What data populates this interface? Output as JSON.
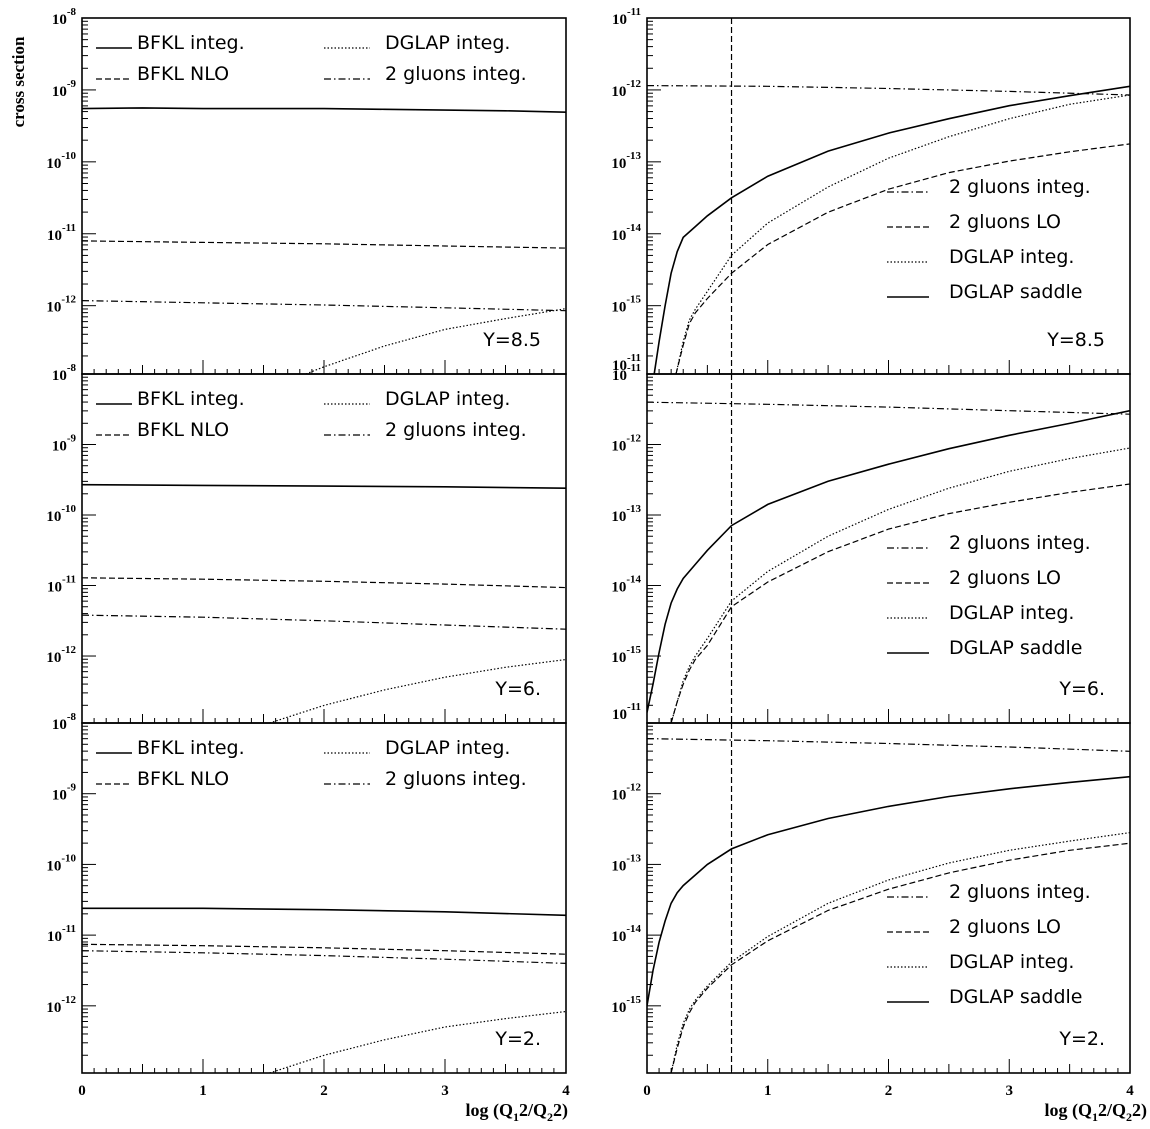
{
  "figure": {
    "ylabel": "cross section",
    "xlabel_left": {
      "base": "log (Q",
      "sub1": "1",
      "mid": "2/Q",
      "sub2": "2",
      "end": "2)"
    },
    "xlabel_right": {
      "base": "log (Q",
      "sub1": "1",
      "mid": "2/Q",
      "sub2": "2",
      "end": "2)"
    }
  },
  "chart_data": [
    {
      "id": "left-top",
      "type": "line",
      "column": "left",
      "row": 0,
      "xlim": [
        0,
        4
      ],
      "ylim_exp": [
        -12.95,
        -8
      ],
      "ytick_exps": [
        -8,
        -9,
        -10,
        -11,
        -12
      ],
      "yscale": "log",
      "annotation": "Y=8.5",
      "show_xticks": false,
      "legend_layout": "two-column",
      "legend": [
        {
          "label": "BFKL integ.",
          "style": "solid"
        },
        {
          "label": "DGLAP integ.",
          "style": "dotted"
        },
        {
          "label": "BFKL NLO",
          "style": "dashed"
        },
        {
          "label": "2 gluons integ.",
          "style": "dashdot"
        }
      ],
      "series": [
        {
          "name": "BFKL integ.",
          "style": "solid",
          "x": [
            0,
            0.5,
            1,
            1.5,
            2,
            2.5,
            3,
            3.5,
            4
          ],
          "log10_y": [
            -9.26,
            -9.25,
            -9.26,
            -9.26,
            -9.26,
            -9.27,
            -9.28,
            -9.29,
            -9.31
          ]
        },
        {
          "name": "BFKL NLO",
          "style": "dashed",
          "x": [
            0,
            1,
            2,
            3,
            4
          ],
          "log10_y": [
            -11.1,
            -11.12,
            -11.14,
            -11.17,
            -11.2
          ]
        },
        {
          "name": "2 gluons integ.",
          "style": "dashdot",
          "x": [
            0,
            1,
            2,
            3,
            4
          ],
          "log10_y": [
            -11.93,
            -11.96,
            -11.99,
            -12.03,
            -12.07
          ]
        },
        {
          "name": "DGLAP integ.",
          "style": "dotted",
          "x": [
            1.85,
            2,
            2.5,
            3,
            3.5,
            4
          ],
          "log10_y": [
            -12.95,
            -12.85,
            -12.56,
            -12.33,
            -12.18,
            -12.04
          ]
        }
      ]
    },
    {
      "id": "right-top",
      "type": "line",
      "column": "right",
      "row": 0,
      "xlim": [
        0,
        4
      ],
      "ylim_exp": [
        -15.95,
        -11
      ],
      "ytick_exps": [
        -11,
        -12,
        -13,
        -14,
        -15
      ],
      "bottom_label_exp": -11,
      "yscale": "log",
      "annotation": "Y=8.5",
      "show_xticks": false,
      "vline_x": 0.7,
      "legend_layout": "one-column",
      "legend": [
        {
          "label": "2 gluons integ.",
          "style": "dashdot"
        },
        {
          "label": "2 gluons LO",
          "style": "dashed"
        },
        {
          "label": "DGLAP integ.",
          "style": "dotted"
        },
        {
          "label": "DGLAP saddle",
          "style": "solid"
        }
      ],
      "series": [
        {
          "name": "2 gluons integ.",
          "style": "dashdot",
          "x": [
            0,
            1,
            2,
            3,
            4
          ],
          "log10_y": [
            -11.94,
            -11.95,
            -11.98,
            -12.02,
            -12.07
          ]
        },
        {
          "name": "DGLAP saddle",
          "style": "solid",
          "x": [
            0.06,
            0.1,
            0.15,
            0.2,
            0.25,
            0.3,
            0.4,
            0.5,
            0.7,
            1,
            1.5,
            2,
            2.5,
            3,
            3.5,
            4
          ],
          "log10_y": [
            -15.95,
            -15.5,
            -15.0,
            -14.55,
            -14.25,
            -14.05,
            -13.9,
            -13.75,
            -13.5,
            -13.2,
            -12.85,
            -12.6,
            -12.4,
            -12.22,
            -12.08,
            -11.95
          ]
        },
        {
          "name": "DGLAP integ.",
          "style": "dotted",
          "x": [
            0.24,
            0.3,
            0.35,
            0.4,
            0.5,
            0.7,
            1,
            1.5,
            2,
            2.5,
            3,
            3.5,
            4
          ],
          "log10_y": [
            -15.95,
            -15.5,
            -15.2,
            -15.05,
            -14.8,
            -14.3,
            -13.85,
            -13.35,
            -12.95,
            -12.65,
            -12.4,
            -12.2,
            -12.07
          ]
        },
        {
          "name": "2 gluons LO",
          "style": "dashed",
          "x": [
            0.24,
            0.3,
            0.35,
            0.4,
            0.5,
            0.7,
            1,
            1.5,
            2,
            2.5,
            3,
            3.5,
            4
          ],
          "log10_y": [
            -15.95,
            -15.55,
            -15.25,
            -15.1,
            -14.9,
            -14.55,
            -14.15,
            -13.7,
            -13.38,
            -13.15,
            -12.99,
            -12.86,
            -12.75
          ]
        }
      ]
    },
    {
      "id": "left-middle",
      "type": "line",
      "column": "left",
      "row": 1,
      "xlim": [
        0,
        4
      ],
      "ylim_exp": [
        -12.95,
        -8
      ],
      "ytick_exps": [
        -8,
        -9,
        -10,
        -11,
        -12
      ],
      "yscale": "log",
      "annotation": "Y=6.",
      "show_xticks": false,
      "legend_layout": "two-column",
      "legend": [
        {
          "label": "BFKL integ.",
          "style": "solid"
        },
        {
          "label": "DGLAP integ.",
          "style": "dotted"
        },
        {
          "label": "BFKL NLO",
          "style": "dashed"
        },
        {
          "label": "2 gluons integ.",
          "style": "dashdot"
        }
      ],
      "series": [
        {
          "name": "BFKL integ.",
          "style": "solid",
          "x": [
            0,
            1,
            2,
            3,
            4
          ],
          "log10_y": [
            -9.57,
            -9.58,
            -9.59,
            -9.6,
            -9.62
          ]
        },
        {
          "name": "BFKL NLO",
          "style": "dashed",
          "x": [
            0,
            1,
            2,
            3,
            4
          ],
          "log10_y": [
            -10.89,
            -10.91,
            -10.94,
            -10.98,
            -11.03
          ]
        },
        {
          "name": "2 gluons integ.",
          "style": "dashdot",
          "x": [
            0,
            1,
            2,
            3,
            4
          ],
          "log10_y": [
            -11.42,
            -11.45,
            -11.5,
            -11.56,
            -11.62
          ]
        },
        {
          "name": "DGLAP integ.",
          "style": "dotted",
          "x": [
            1.55,
            2,
            2.5,
            3,
            3.5,
            4
          ],
          "log10_y": [
            -12.95,
            -12.7,
            -12.48,
            -12.3,
            -12.16,
            -12.05
          ]
        }
      ]
    },
    {
      "id": "right-middle",
      "type": "line",
      "column": "right",
      "row": 1,
      "xlim": [
        0,
        4
      ],
      "ylim_exp": [
        -15.95,
        -11
      ],
      "ytick_exps": [
        -11,
        -12,
        -13,
        -14,
        -15
      ],
      "bottom_label_exp": -11,
      "yscale": "log",
      "annotation": "Y=6.",
      "show_xticks": false,
      "vline_x": 0.7,
      "legend_layout": "one-column",
      "legend": [
        {
          "label": "2 gluons integ.",
          "style": "dashdot"
        },
        {
          "label": "2 gluons LO",
          "style": "dashed"
        },
        {
          "label": "DGLAP integ.",
          "style": "dotted"
        },
        {
          "label": "DGLAP saddle",
          "style": "solid"
        }
      ],
      "series": [
        {
          "name": "2 gluons integ.",
          "style": "dashdot",
          "x": [
            0,
            1,
            2,
            3,
            4
          ],
          "log10_y": [
            -11.4,
            -11.43,
            -11.47,
            -11.52,
            -11.57
          ]
        },
        {
          "name": "DGLAP saddle",
          "style": "solid",
          "x": [
            0,
            0.05,
            0.1,
            0.15,
            0.2,
            0.25,
            0.3,
            0.4,
            0.5,
            0.7,
            1,
            1.5,
            2,
            2.5,
            3,
            3.5,
            4
          ],
          "log10_y": [
            -15.8,
            -15.4,
            -14.95,
            -14.55,
            -14.25,
            -14.05,
            -13.9,
            -13.7,
            -13.5,
            -13.15,
            -12.85,
            -12.52,
            -12.28,
            -12.06,
            -11.87,
            -11.7,
            -11.52
          ]
        },
        {
          "name": "DGLAP integ.",
          "style": "dotted",
          "x": [
            0.2,
            0.25,
            0.3,
            0.35,
            0.4,
            0.5,
            0.7,
            1,
            1.5,
            2,
            2.5,
            3,
            3.5,
            4
          ],
          "log10_y": [
            -15.95,
            -15.65,
            -15.35,
            -15.15,
            -15.0,
            -14.75,
            -14.22,
            -13.8,
            -13.3,
            -12.92,
            -12.62,
            -12.38,
            -12.2,
            -12.05
          ]
        },
        {
          "name": "2 gluons LO",
          "style": "dashed",
          "x": [
            0.2,
            0.25,
            0.3,
            0.35,
            0.4,
            0.5,
            0.7,
            1,
            1.5,
            2,
            2.5,
            3,
            3.5,
            4
          ],
          "log10_y": [
            -15.95,
            -15.65,
            -15.4,
            -15.2,
            -15.05,
            -14.85,
            -14.3,
            -13.95,
            -13.52,
            -13.2,
            -12.98,
            -12.82,
            -12.68,
            -12.56
          ]
        }
      ]
    },
    {
      "id": "left-bottom",
      "type": "line",
      "column": "left",
      "row": 2,
      "xlim": [
        0,
        4
      ],
      "ylim_exp": [
        -12.95,
        -8
      ],
      "ytick_exps": [
        -8,
        -9,
        -10,
        -11,
        -12
      ],
      "yscale": "log",
      "annotation": "Y=2.",
      "show_xticks": true,
      "xticks": [
        0,
        1,
        2,
        3,
        4
      ],
      "legend_layout": "two-column",
      "legend": [
        {
          "label": "BFKL integ.",
          "style": "solid"
        },
        {
          "label": "DGLAP integ.",
          "style": "dotted"
        },
        {
          "label": "BFKL NLO",
          "style": "dashed"
        },
        {
          "label": "2 gluons integ.",
          "style": "dashdot"
        }
      ],
      "series": [
        {
          "name": "BFKL integ.",
          "style": "solid",
          "x": [
            0,
            1,
            2,
            3,
            4
          ],
          "log10_y": [
            -10.62,
            -10.62,
            -10.64,
            -10.67,
            -10.72
          ]
        },
        {
          "name": "BFKL NLO",
          "style": "dashed",
          "x": [
            0,
            1,
            2,
            3,
            4
          ],
          "log10_y": [
            -11.13,
            -11.15,
            -11.18,
            -11.22,
            -11.27
          ]
        },
        {
          "name": "2 gluons integ.",
          "style": "dashdot",
          "x": [
            0,
            1,
            2,
            3,
            4
          ],
          "log10_y": [
            -11.22,
            -11.25,
            -11.29,
            -11.34,
            -11.4
          ]
        },
        {
          "name": "DGLAP integ.",
          "style": "dotted",
          "x": [
            1.55,
            2,
            2.5,
            3,
            3.5,
            4
          ],
          "log10_y": [
            -12.95,
            -12.7,
            -12.48,
            -12.3,
            -12.18,
            -12.08
          ]
        }
      ]
    },
    {
      "id": "right-bottom",
      "type": "line",
      "column": "right",
      "row": 2,
      "xlim": [
        0,
        4
      ],
      "ylim_exp": [
        -15.95,
        -11
      ],
      "ytick_exps": [
        -12,
        -13,
        -14,
        -15
      ],
      "yscale": "log",
      "annotation": "Y=2.",
      "show_xticks": true,
      "xticks": [
        0,
        1,
        2,
        3,
        4
      ],
      "vline_x": 0.7,
      "legend_layout": "one-column",
      "legend": [
        {
          "label": "2 gluons integ.",
          "style": "dashdot"
        },
        {
          "label": "2 gluons LO",
          "style": "dashed"
        },
        {
          "label": "DGLAP integ.",
          "style": "dotted"
        },
        {
          "label": "DGLAP saddle",
          "style": "solid"
        }
      ],
      "series": [
        {
          "name": "2 gluons integ.",
          "style": "dashdot",
          "x": [
            0,
            1,
            2,
            3,
            4
          ],
          "log10_y": [
            -11.22,
            -11.25,
            -11.29,
            -11.34,
            -11.4
          ]
        },
        {
          "name": "DGLAP saddle",
          "style": "solid",
          "x": [
            0,
            0.05,
            0.1,
            0.15,
            0.2,
            0.25,
            0.3,
            0.4,
            0.5,
            0.7,
            1,
            1.5,
            2,
            2.5,
            3,
            3.5,
            4
          ],
          "log10_y": [
            -15.0,
            -14.5,
            -14.1,
            -13.8,
            -13.55,
            -13.4,
            -13.3,
            -13.15,
            -13.0,
            -12.78,
            -12.58,
            -12.35,
            -12.18,
            -12.04,
            -11.93,
            -11.84,
            -11.76
          ]
        },
        {
          "name": "DGLAP integ.",
          "style": "dotted",
          "x": [
            0.2,
            0.25,
            0.3,
            0.35,
            0.4,
            0.5,
            0.7,
            1,
            1.5,
            2,
            2.5,
            3,
            3.5,
            4
          ],
          "log10_y": [
            -15.95,
            -15.55,
            -15.25,
            -15.05,
            -14.92,
            -14.72,
            -14.38,
            -14.02,
            -13.55,
            -13.22,
            -12.98,
            -12.8,
            -12.67,
            -12.55
          ]
        },
        {
          "name": "2 gluons LO",
          "style": "dashed",
          "x": [
            0.2,
            0.25,
            0.3,
            0.35,
            0.4,
            0.5,
            0.7,
            1,
            1.5,
            2,
            2.5,
            3,
            3.5,
            4
          ],
          "log10_y": [
            -15.95,
            -15.6,
            -15.3,
            -15.1,
            -14.95,
            -14.75,
            -14.42,
            -14.08,
            -13.65,
            -13.35,
            -13.12,
            -12.94,
            -12.8,
            -12.7
          ]
        }
      ]
    }
  ]
}
